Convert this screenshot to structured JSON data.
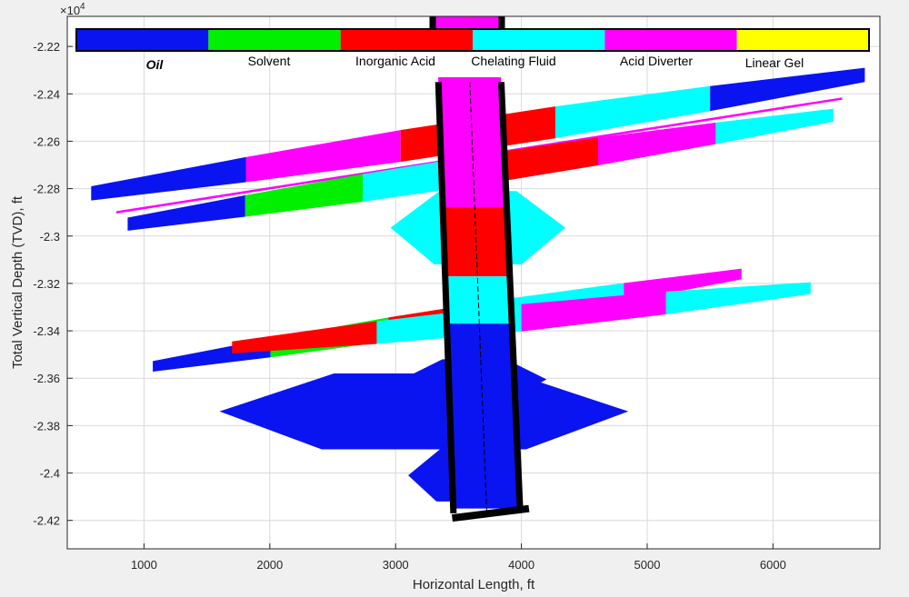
{
  "figure": {
    "exponent_base": "×10",
    "exponent_power": "4"
  },
  "colors": {
    "Oil": "#0a14f0",
    "Solvent": "#00f000",
    "Inorganic Acid": "#ff0000",
    "Chelating Fluid": "#00ffff",
    "Acid Diverter": "#ff00ff",
    "Linear Gel": "#ffff00",
    "wellbore": "#000000",
    "axes_bg": "#ffffff",
    "figure_bg": "#f0f0f0",
    "grid": "#d9d9d9"
  },
  "chart_data": {
    "type": "area",
    "title": "",
    "xlabel": "Horizontal Length, ft",
    "ylabel": "Total Vertical Depth (TVD), ft",
    "xlim": [
      390,
      6850
    ],
    "ylim": [
      -24320,
      -22073
    ],
    "y_scale_factor": 10000,
    "xticks": [
      1000,
      2000,
      3000,
      4000,
      5000,
      6000
    ],
    "xtick_labels": [
      "1000",
      "2000",
      "3000",
      "4000",
      "5000",
      "6000"
    ],
    "yticks": [
      -22200,
      -22400,
      -22600,
      -22800,
      -23000,
      -23200,
      -23400,
      -23600,
      -23800,
      -24000,
      -24200
    ],
    "ytick_labels": [
      "-2.22",
      "-2.24",
      "-2.26",
      "-2.28",
      "-2.3",
      "-2.32",
      "-2.34",
      "-2.36",
      "-2.38",
      "-2.4",
      "-2.42"
    ],
    "grid": true,
    "legend": {
      "placement": "top",
      "entries": [
        "Oil",
        "Solvent",
        "Inorganic Acid",
        "Chelating Fluid",
        "Acid Diverter",
        "Linear Gel"
      ]
    },
    "wellbore": {
      "left_wall": [
        [
          3340,
          -22350
        ],
        [
          3460,
          -24170
        ]
      ],
      "right_wall": [
        [
          3840,
          -22350
        ],
        [
          3990,
          -24160
        ]
      ],
      "bottom": [
        [
          3450,
          -24190
        ],
        [
          4060,
          -24150
        ]
      ],
      "fluid_column": [
        {
          "fluid": "Acid Diverter",
          "top": -22330,
          "bottom": -22880
        },
        {
          "fluid": "Inorganic Acid",
          "top": -22880,
          "bottom": -23170
        },
        {
          "fluid": "Chelating Fluid",
          "top": -23170,
          "bottom": -23370
        },
        {
          "fluid": "Oil",
          "top": -23370,
          "bottom": -24150
        }
      ]
    },
    "fractures": [
      {
        "from": [
          580,
          -22820
        ],
        "to": [
          6730,
          -22320
        ],
        "half_width": 60,
        "fluids": [
          "Oil",
          "Acid Diverter",
          "Inorganic Acid",
          "Chelating Fluid",
          "Oil"
        ]
      },
      {
        "from": [
          780,
          -22900
        ],
        "to": [
          6550,
          -22420
        ],
        "half_width": 10,
        "fluids": [
          "Acid Diverter"
        ]
      },
      {
        "from": [
          870,
          -22950
        ],
        "to": [
          6480,
          -22490
        ],
        "half_width": 55,
        "fluids": [
          "Oil",
          "Solvent",
          "Chelating Fluid",
          "Inorganic Acid",
          "Acid Diverter",
          "Chelating Fluid"
        ]
      },
      {
        "from": [
          1070,
          -23550
        ],
        "to": [
          5750,
          -23160
        ],
        "half_width": 45,
        "fluids": [
          "Oil",
          "Solvent",
          "Inorganic Acid",
          "Chelating Fluid",
          "Acid Diverter"
        ]
      },
      {
        "from": [
          1700,
          -23470
        ],
        "to": [
          6300,
          -23220
        ],
        "half_width": 50,
        "fluids": [
          "Inorganic Acid",
          "Chelating Fluid",
          "Acid Diverter",
          "Chelating Fluid"
        ]
      }
    ],
    "near_well_zones": [
      {
        "fluid": "Chelating Fluid",
        "x": [
          2960,
          4350
        ],
        "y": [
          -22810,
          -23120
        ]
      },
      {
        "fluid": "Oil",
        "x": [
          3050,
          4200
        ],
        "y": [
          -23520,
          -23690
        ]
      },
      {
        "fluid": "Oil",
        "x": [
          1600,
          4850
        ],
        "y": [
          -23580,
          -23900
        ]
      },
      {
        "fluid": "Oil",
        "x": [
          3100,
          4000
        ],
        "y": [
          -23900,
          -24120
        ]
      }
    ]
  }
}
